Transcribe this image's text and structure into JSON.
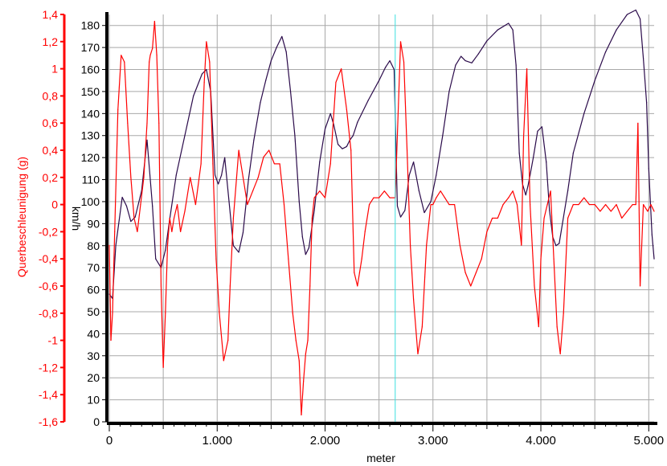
{
  "chart_data": {
    "type": "line",
    "xlabel": "meter",
    "x_ticks": [
      "0",
      "1.000",
      "2.000",
      "3.000",
      "4.000",
      "5.000"
    ],
    "x_tick_values": [
      0,
      1000,
      2000,
      3000,
      4000,
      5000
    ],
    "xlim": [
      0,
      5050
    ],
    "grid": true,
    "cursor_x": 2650,
    "axes": {
      "left_outer": {
        "label": "Querbeschleunigung (g)",
        "ylim": [
          -1.6,
          1.4
        ],
        "ticks": [
          "1,4",
          "1,2",
          "1",
          "0,8",
          "0,6",
          "0,4",
          "0,2",
          "0",
          "-0,2",
          "-0,4",
          "-0,6",
          "-0,8",
          "-1",
          "-1,2",
          "-1,4",
          "-1,6"
        ],
        "tick_values": [
          1.4,
          1.2,
          1.0,
          0.8,
          0.6,
          0.4,
          0.2,
          0,
          -0.2,
          -0.4,
          -0.6,
          -0.8,
          -1.0,
          -1.2,
          -1.4,
          -1.6
        ],
        "color": "#ff0000"
      },
      "left_inner": {
        "label": "km/h",
        "ylim": [
          0,
          185
        ],
        "ticks": [
          "180",
          "170",
          "160",
          "150",
          "140",
          "130",
          "120",
          "110",
          "100",
          "90",
          "80",
          "70",
          "60",
          "50",
          "40",
          "30",
          "20",
          "10",
          "0"
        ],
        "tick_values": [
          180,
          170,
          160,
          150,
          140,
          130,
          120,
          110,
          100,
          90,
          80,
          70,
          60,
          50,
          40,
          30,
          20,
          10,
          0
        ],
        "color": "#000000"
      }
    },
    "series": [
      {
        "axis": "left_inner",
        "color": "#2a0a4a",
        "x": [
          0,
          30,
          60,
          120,
          160,
          200,
          240,
          300,
          350,
          400,
          430,
          480,
          520,
          560,
          620,
          700,
          780,
          860,
          900,
          940,
          980,
          1010,
          1040,
          1070,
          1110,
          1150,
          1200,
          1240,
          1290,
          1340,
          1400,
          1450,
          1500,
          1550,
          1600,
          1640,
          1680,
          1720,
          1760,
          1790,
          1820,
          1850,
          1900,
          1950,
          2000,
          2050,
          2080,
          2120,
          2160,
          2200,
          2230,
          2260,
          2300,
          2400,
          2500,
          2560,
          2600,
          2640,
          2670,
          2700,
          2740,
          2780,
          2820,
          2870,
          2920,
          2980,
          3030,
          3090,
          3150,
          3210,
          3260,
          3300,
          3360,
          3420,
          3500,
          3600,
          3700,
          3740,
          3770,
          3800,
          3830,
          3860,
          3880,
          3900,
          3930,
          3970,
          4010,
          4050,
          4080,
          4110,
          4140,
          4170,
          4200,
          4250,
          4300,
          4400,
          4500,
          4600,
          4700,
          4800,
          4880,
          4920,
          4950,
          4980,
          5000,
          5030,
          5050
        ],
        "y": [
          58,
          56,
          80,
          102,
          98,
          91,
          93,
          105,
          128,
          98,
          74,
          70,
          78,
          92,
          112,
          130,
          148,
          158,
          160,
          150,
          112,
          108,
          112,
          120,
          100,
          80,
          77,
          86,
          110,
          128,
          145,
          155,
          164,
          170,
          175,
          168,
          150,
          130,
          100,
          84,
          76,
          79,
          96,
          118,
          133,
          140,
          135,
          126,
          124,
          125,
          128,
          130,
          136,
          146,
          155,
          161,
          164,
          160,
          98,
          93,
          96,
          112,
          118,
          105,
          95,
          100,
          112,
          130,
          150,
          162,
          166,
          164,
          163,
          167,
          173,
          178,
          181,
          178,
          162,
          122,
          108,
          103,
          107,
          112,
          120,
          132,
          134,
          118,
          96,
          84,
          80,
          81,
          90,
          105,
          122,
          140,
          155,
          168,
          178,
          185,
          187,
          183,
          165,
          145,
          115,
          85,
          74
        ]
      },
      {
        "axis": "left_outer",
        "color": "#ff0000",
        "x": [
          0,
          15,
          30,
          50,
          80,
          110,
          140,
          170,
          200,
          230,
          260,
          290,
          320,
          350,
          370,
          380,
          400,
          420,
          440,
          460,
          480,
          500,
          520,
          540,
          560,
          580,
          600,
          630,
          660,
          700,
          750,
          800,
          850,
          880,
          900,
          930,
          960,
          990,
          1020,
          1060,
          1100,
          1120,
          1150,
          1180,
          1200,
          1240,
          1280,
          1330,
          1380,
          1430,
          1480,
          1530,
          1580,
          1620,
          1660,
          1700,
          1730,
          1760,
          1780,
          1800,
          1820,
          1840,
          1860,
          1880,
          1900,
          1950,
          2000,
          2050,
          2100,
          2150,
          2200,
          2240,
          2270,
          2300,
          2320,
          2340,
          2370,
          2410,
          2450,
          2500,
          2550,
          2600,
          2650,
          2700,
          2730,
          2760,
          2790,
          2820,
          2860,
          2900,
          2940,
          2980,
          3000,
          3030,
          3070,
          3110,
          3150,
          3200,
          3250,
          3300,
          3350,
          3400,
          3450,
          3500,
          3550,
          3600,
          3650,
          3700,
          3740,
          3780,
          3820,
          3840,
          3870,
          3900,
          3940,
          3980,
          4000,
          4030,
          4060,
          4090,
          4120,
          4150,
          4180,
          4210,
          4250,
          4300,
          4350,
          4400,
          4450,
          4500,
          4550,
          4600,
          4650,
          4700,
          4750,
          4800,
          4850,
          4880,
          4900,
          4920,
          4950,
          4990,
          5020,
          5050
        ],
        "y": [
          -0.3,
          -1.0,
          -0.8,
          -0.2,
          0.7,
          1.1,
          1.05,
          0.6,
          0.2,
          -0.1,
          -0.2,
          0.0,
          0.2,
          0.6,
          1.05,
          1.1,
          1.15,
          1.35,
          1.1,
          0.6,
          -0.6,
          -1.2,
          -0.8,
          -0.3,
          -0.1,
          -0.2,
          -0.1,
          0.0,
          -0.2,
          -0.05,
          0.2,
          0.0,
          0.3,
          0.9,
          1.2,
          1.05,
          0.3,
          -0.4,
          -0.8,
          -1.15,
          -1.0,
          -0.6,
          -0.1,
          0.2,
          0.4,
          0.2,
          0.0,
          0.1,
          0.2,
          0.35,
          0.4,
          0.3,
          0.3,
          0.0,
          -0.4,
          -0.8,
          -1.0,
          -1.15,
          -1.55,
          -1.3,
          -1.1,
          -1.0,
          -0.6,
          -0.1,
          0.05,
          0.1,
          0.05,
          0.3,
          0.9,
          1.0,
          0.7,
          0.4,
          -0.5,
          -0.6,
          -0.5,
          -0.4,
          -0.2,
          0.0,
          0.05,
          0.05,
          0.1,
          0.05,
          0.05,
          1.2,
          1.05,
          0.4,
          -0.3,
          -0.7,
          -1.1,
          -0.9,
          -0.3,
          0.0,
          0.0,
          0.05,
          0.1,
          0.05,
          0.0,
          0.0,
          -0.3,
          -0.5,
          -0.6,
          -0.5,
          -0.4,
          -0.2,
          -0.1,
          -0.1,
          0.0,
          0.05,
          0.1,
          0.0,
          -0.3,
          0.5,
          1.0,
          0.0,
          -0.6,
          -0.9,
          -0.4,
          -0.1,
          0.0,
          0.1,
          -0.4,
          -0.9,
          -1.1,
          -0.8,
          -0.1,
          0.0,
          0.0,
          0.05,
          0.0,
          0.0,
          -0.05,
          0.0,
          -0.05,
          0.0,
          -0.1,
          -0.05,
          0.0,
          0.0,
          0.6,
          -0.6,
          0.0,
          -0.05,
          0.0,
          -0.05
        ]
      }
    ]
  }
}
